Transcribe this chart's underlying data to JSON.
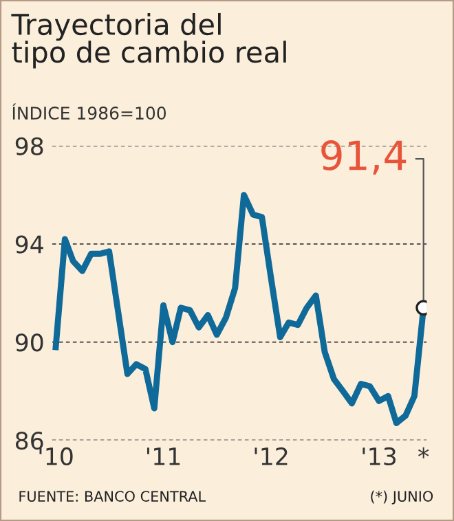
{
  "chart_data": {
    "type": "line",
    "title": "Trayectoria del\ntipo de cambio real",
    "subtitle": "ÍNDICE 1986=100",
    "x": [
      "2010-01",
      "2010-02",
      "2010-03",
      "2010-04",
      "2010-05",
      "2010-06",
      "2010-07",
      "2010-08",
      "2010-09",
      "2010-10",
      "2010-11",
      "2010-12",
      "2011-01",
      "2011-02",
      "2011-03",
      "2011-04",
      "2011-05",
      "2011-06",
      "2011-07",
      "2011-08",
      "2011-09",
      "2011-10",
      "2011-11",
      "2011-12",
      "2012-01",
      "2012-02",
      "2012-03",
      "2012-04",
      "2012-05",
      "2012-06",
      "2012-07",
      "2012-08",
      "2012-09",
      "2012-10",
      "2012-11",
      "2012-12",
      "2013-01",
      "2013-02",
      "2013-03",
      "2013-04",
      "2013-05",
      "2013-06"
    ],
    "series": [
      {
        "color": "#0f6a99",
        "values": [
          89.8,
          94.2,
          93.3,
          92.9,
          93.6,
          93.6,
          93.7,
          91.2,
          88.7,
          89.1,
          88.9,
          87.3,
          91.5,
          90.0,
          91.4,
          91.3,
          90.6,
          91.1,
          90.3,
          91.0,
          92.2,
          96.0,
          95.2,
          95.1,
          92.6,
          90.2,
          90.8,
          90.7,
          91.4,
          91.9,
          89.6,
          88.5,
          88.0,
          87.5,
          88.3,
          88.2,
          87.6,
          87.8,
          86.7,
          87.0,
          87.8,
          91.4
        ]
      }
    ],
    "ylim": [
      86,
      98
    ],
    "yticks": [
      86,
      90,
      94,
      98
    ],
    "xlim": [
      "2009-12-20",
      "2013-06-12"
    ],
    "xticks": [
      {
        "value": "2010-01",
        "label": "'10"
      },
      {
        "value": "2011-01",
        "label": "'11"
      },
      {
        "value": "2012-01",
        "label": "'12"
      },
      {
        "value": "2013-01",
        "label": "'13"
      },
      {
        "value": "2013-06",
        "label": "*"
      }
    ],
    "grid": "y",
    "line_style": "solid",
    "annotations": [
      {
        "text": "91,4",
        "x": "2013-06",
        "y": 91.4
      },
      "FUENTE: BANCO CENTRAL",
      "(*) JUNIO"
    ]
  }
}
